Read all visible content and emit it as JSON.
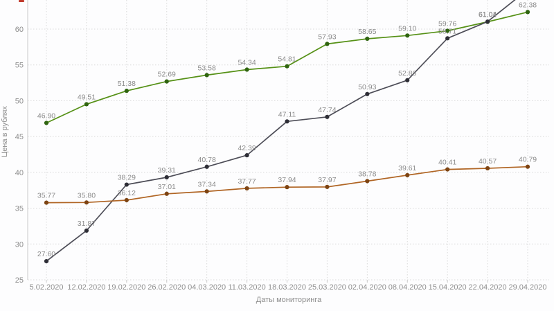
{
  "page": {
    "background": "#fdfdfe",
    "red_marker_color": "#c0392b"
  },
  "chart_data": {
    "type": "line",
    "title": "",
    "xlabel": "Даты мониторинга",
    "ylabel": "Цена в рублях",
    "categories": [
      "5.02.2020",
      "12.02.2020",
      "19.02.2020",
      "26.02.2020",
      "04.03.2020",
      "11.03.2020",
      "18.03.2020",
      "25.03.2020",
      "02.04.2020",
      "08.04.2020",
      "15.04.2020",
      "22.04.2020",
      "29.04.2020"
    ],
    "y_ticks": [
      25,
      30,
      35,
      40,
      45,
      50,
      55,
      60
    ],
    "ylim": [
      25,
      64
    ],
    "grid": true,
    "legend_position": "none",
    "label_color": "#8a8a8a",
    "grid_color": "#d9d9d9",
    "axis_color": "#c9c9c9",
    "series": [
      {
        "name": "green-series",
        "color": "#569117",
        "point_color": "#2f6410",
        "values": [
          46.9,
          49.51,
          51.38,
          52.69,
          53.58,
          54.34,
          54.81,
          57.93,
          58.65,
          59.1,
          59.76,
          61.01,
          62.38
        ],
        "labels": [
          "46.90",
          "49.51",
          "51.38",
          "52.69",
          "53.58",
          "54.34",
          "54.81",
          "57.93",
          "58.65",
          "59.10",
          "59.76",
          "61.01",
          "62.38"
        ]
      },
      {
        "name": "dark-series",
        "color": "#4d4d57",
        "point_color": "#2e2e36",
        "last_point_offscreen": true,
        "values": [
          27.6,
          31.87,
          38.29,
          39.31,
          40.78,
          42.39,
          47.11,
          47.74,
          50.93,
          52.86,
          58.71,
          61.04,
          65.5
        ],
        "labels": [
          "27.60",
          "31.87",
          "38.29",
          "39.31",
          "40.78",
          "42.39",
          "47.11",
          "47.74",
          "50.93",
          "52.86",
          "58.71",
          "61.04",
          ""
        ]
      },
      {
        "name": "brown-series",
        "color": "#b06524",
        "point_color": "#7d4413",
        "values": [
          35.77,
          35.8,
          36.12,
          37.01,
          37.34,
          37.77,
          37.94,
          37.97,
          38.78,
          39.61,
          40.41,
          40.57,
          40.79
        ],
        "labels": [
          "35.77",
          "35.80",
          "36.12",
          "37.01",
          "37.34",
          "37.77",
          "37.94",
          "37.97",
          "38.78",
          "39.61",
          "40.41",
          "40.57",
          "40.79"
        ]
      }
    ]
  }
}
